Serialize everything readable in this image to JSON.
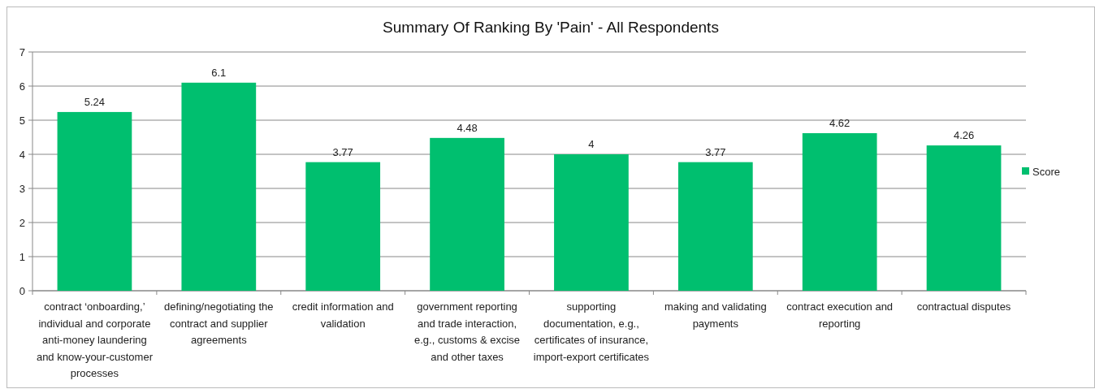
{
  "chart_data": {
    "type": "bar",
    "title": "Summary Of Ranking By 'Pain' - All Respondents",
    "categories": [
      "contract ‘onboarding,’ individual and corporate anti-money laundering and know-your-customer processes",
      "defining/negotiating the contract and supplier agreements",
      "credit information and validation",
      "government reporting and trade interaction, e.g., customs & excise and other taxes",
      "supporting documentation, e.g., certificates of insurance, import-export certificates",
      "making and validating payments",
      "contract execution and reporting",
      "contractual disputes"
    ],
    "series": [
      {
        "name": "Score",
        "color": "#00bf6f",
        "values": [
          5.24,
          6.1,
          3.77,
          4.48,
          4,
          3.77,
          4.62,
          4.26
        ]
      }
    ],
    "ylim": [
      0,
      7
    ],
    "yticks": [
      0,
      1,
      2,
      3,
      4,
      5,
      6,
      7
    ],
    "grid": "y",
    "legend": "right",
    "data_labels": true
  }
}
